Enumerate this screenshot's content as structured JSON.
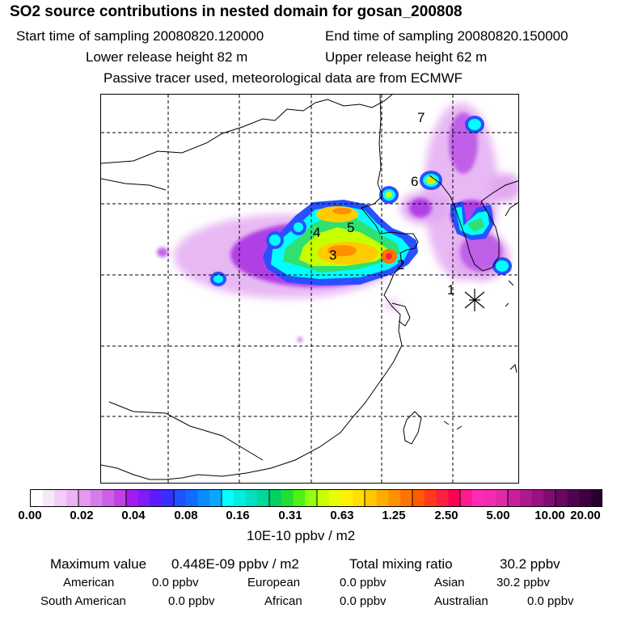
{
  "header": {
    "title": "SO2 source contributions in nested domain for gosan_200808",
    "start_time": "Start time of sampling 20080820.120000",
    "end_time": "End time of sampling 20080820.150000",
    "lower_height": "Lower release height   82 m",
    "upper_height": "Upper release height   62 m",
    "tracer_note": "Passive tracer used, meteorological data are from ECMWF"
  },
  "map": {
    "receptor_marker": "*",
    "source_labels": [
      "1",
      "2",
      "3",
      "4",
      "5",
      "6",
      "7"
    ]
  },
  "colorbar": {
    "tick_labels": [
      "0.00",
      "0.02",
      "0.04",
      "0.08",
      "0.16",
      "0.31",
      "0.63",
      "1.25",
      "2.50",
      "5.00",
      "10.00",
      "20.00"
    ],
    "units": "10E-10 ppbv / m2",
    "colors": [
      "#ffffff",
      "#f8e6fb",
      "#f2cdf8",
      "#ebb3f4",
      "#e29bf0",
      "#d77deb",
      "#cc5fe6",
      "#bf41e2",
      "#a61cf0",
      "#7f1cf7",
      "#5a1cff",
      "#3630ff",
      "#2050ff",
      "#0f6cff",
      "#0a8cff",
      "#08a8ff",
      "#00ffff",
      "#00eee0",
      "#00e0c0",
      "#00d898",
      "#00d060",
      "#20e030",
      "#50f018",
      "#90ff10",
      "#c8ff00",
      "#e8ff00",
      "#fff200",
      "#ffe000",
      "#ffc800",
      "#ffac00",
      "#ff9000",
      "#ff7400",
      "#ff5a00",
      "#ff3a1a",
      "#ff2040",
      "#ff0055",
      "#ff1a90",
      "#ff2ab5",
      "#f22cb2",
      "#e02aa8",
      "#c8209c",
      "#b01890",
      "#981280",
      "#800c70",
      "#680860",
      "#500450",
      "#3c0040",
      "#280030"
    ]
  },
  "stats": {
    "max_label": "Maximum value",
    "max_value": "0.448E-09 ppbv / m2",
    "total_label": "Total mixing ratio",
    "total_value": "30.2 ppbv",
    "regions": [
      {
        "name": "American",
        "value": "0.0 ppbv"
      },
      {
        "name": "European",
        "value": "0.0 ppbv"
      },
      {
        "name": "Asian",
        "value": "30.2 ppbv"
      },
      {
        "name": "South American",
        "value": "0.0 ppbv"
      },
      {
        "name": "African",
        "value": "0.0 ppbv"
      },
      {
        "name": "Australian",
        "value": "0.0 ppbv"
      }
    ]
  }
}
